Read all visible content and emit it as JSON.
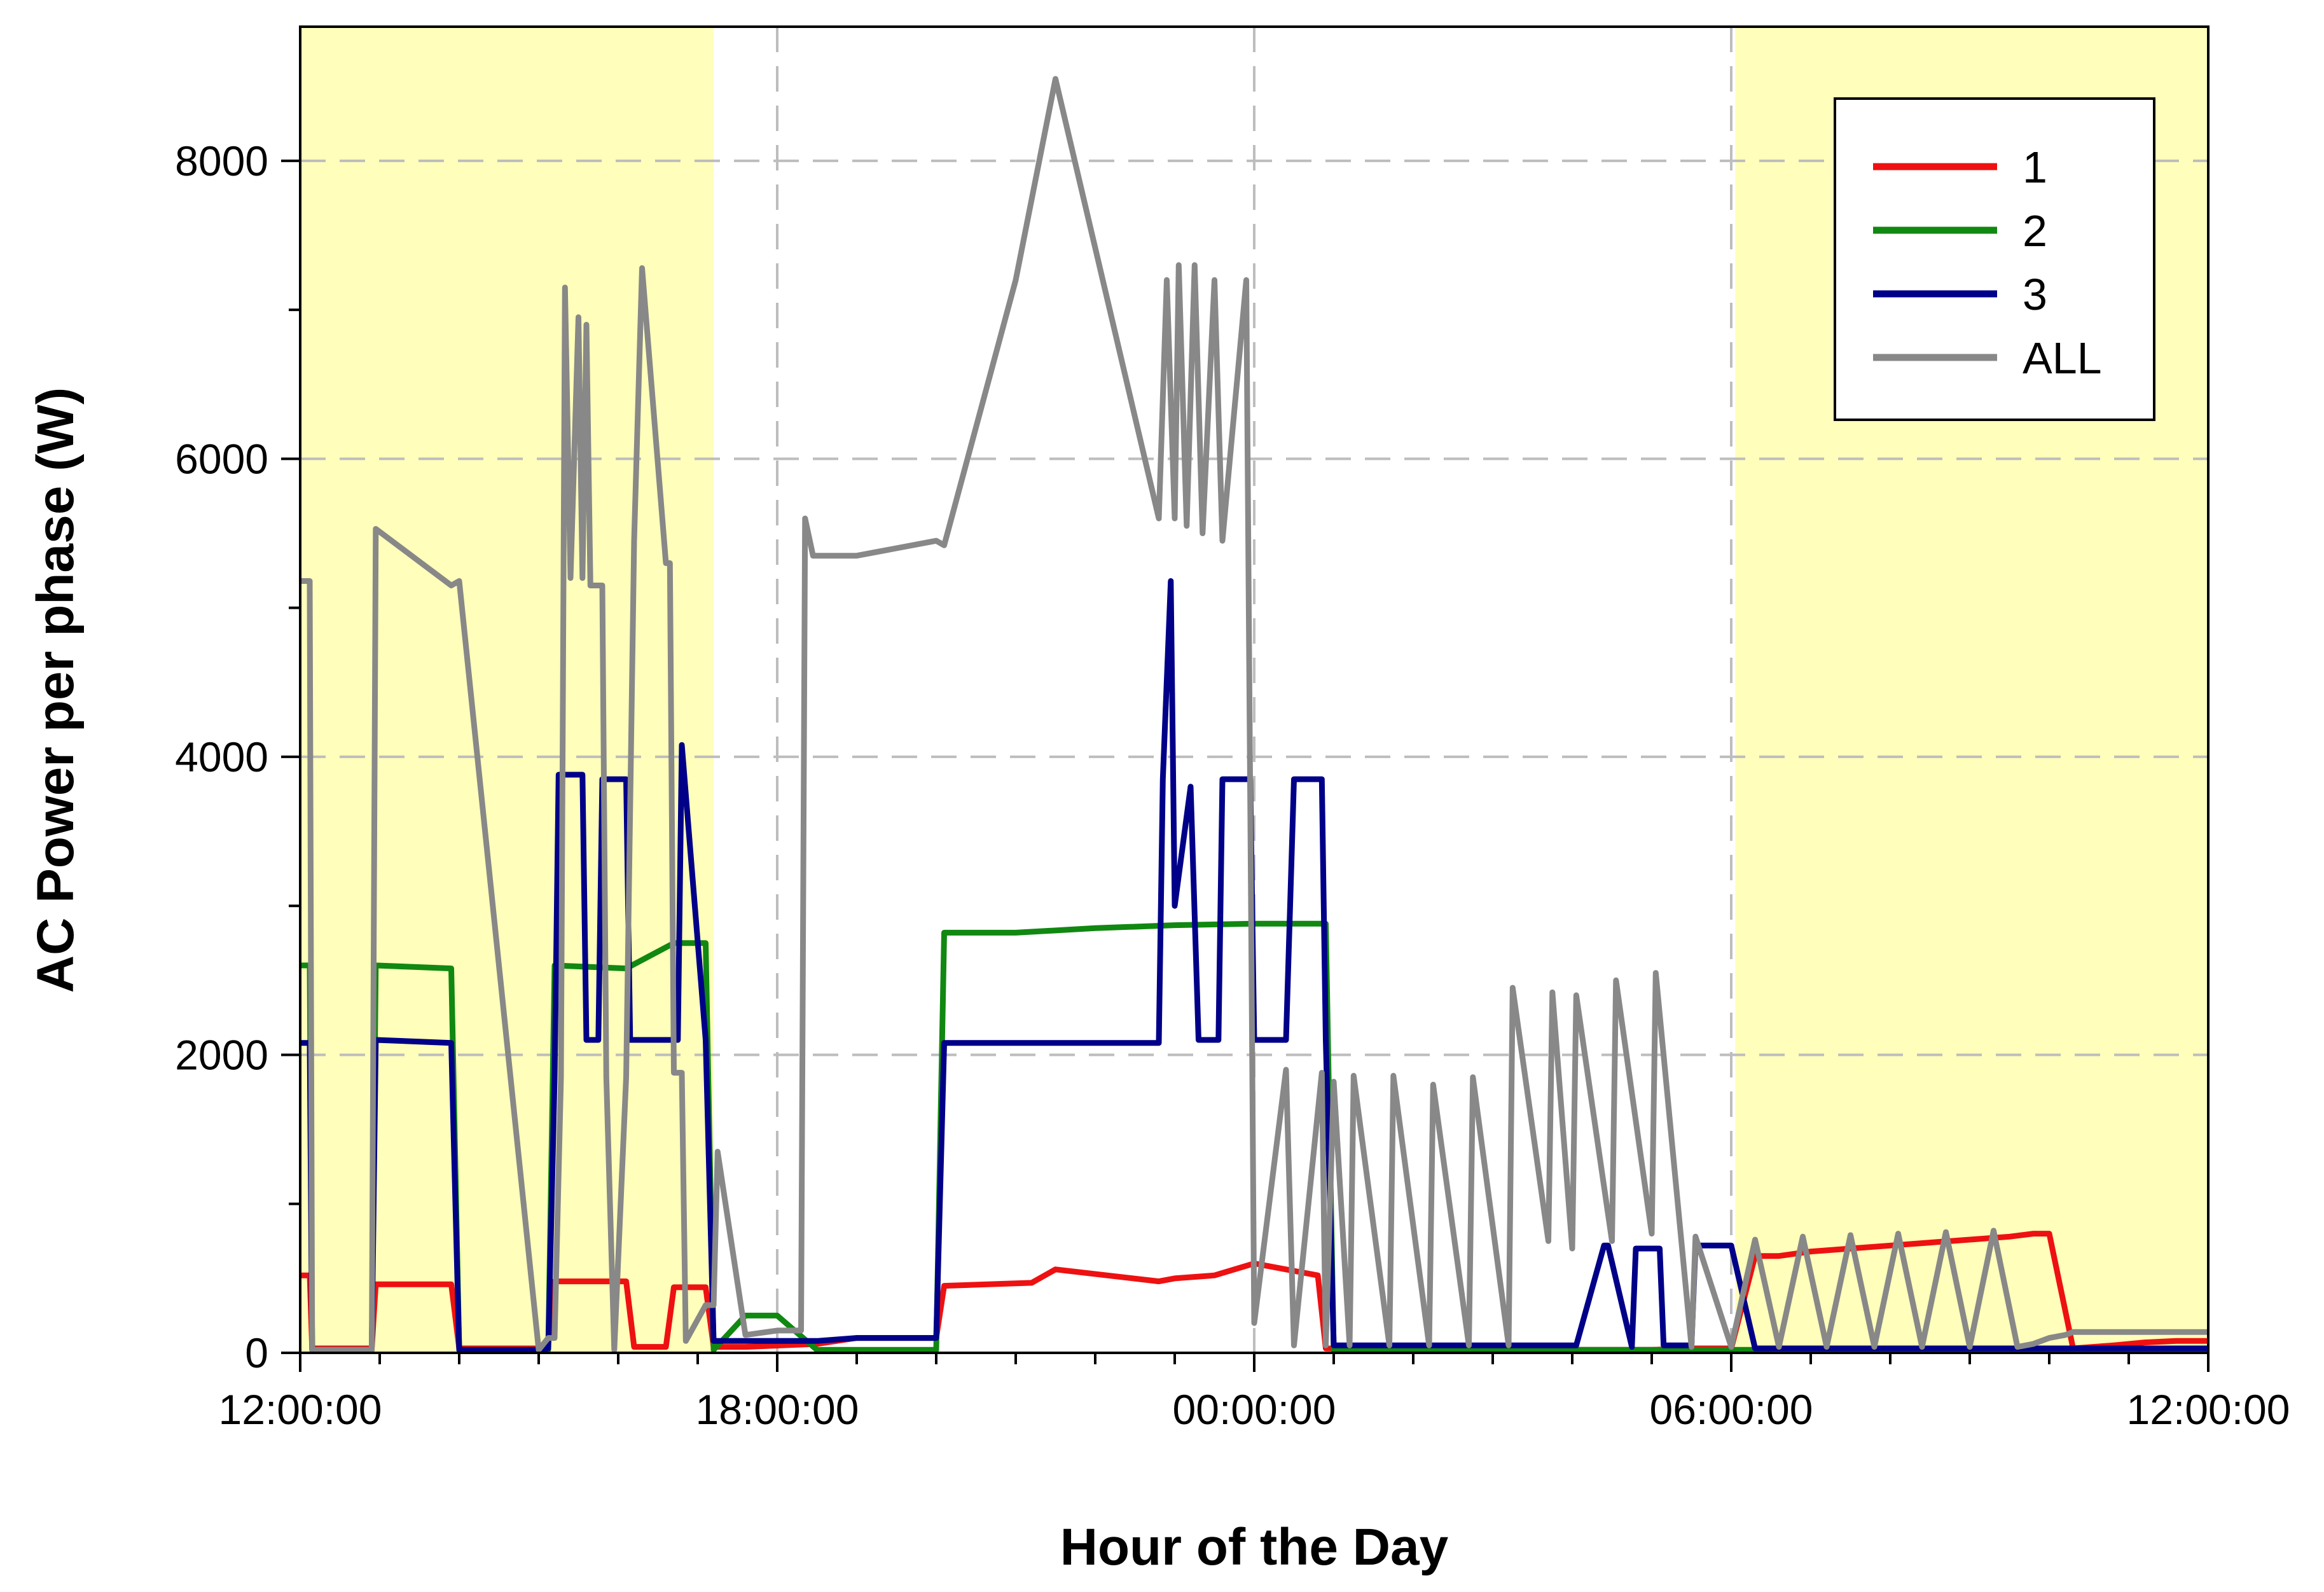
{
  "chart_data": {
    "type": "line",
    "title": "",
    "xlabel": "Hour of the Day",
    "ylabel": "AC Power per phase (W)",
    "xlim": [
      0,
      24
    ],
    "ylim": [
      0,
      8900
    ],
    "x_unit": "hours since 12:00:00",
    "x_ticks": [
      {
        "value": 0,
        "label": "12:00:00"
      },
      {
        "value": 6,
        "label": "18:00:00"
      },
      {
        "value": 12,
        "label": "00:00:00"
      },
      {
        "value": 18,
        "label": "06:00:00"
      },
      {
        "value": 24,
        "label": "12:00:00"
      }
    ],
    "y_ticks": [
      {
        "value": 0,
        "label": "0"
      },
      {
        "value": 2000,
        "label": "2000"
      },
      {
        "value": 4000,
        "label": "4000"
      },
      {
        "value": 6000,
        "label": "6000"
      },
      {
        "value": 8000,
        "label": "8000"
      }
    ],
    "grid": true,
    "legend_position": "top-right",
    "daylight_shading": {
      "color": "#ffffbb",
      "ranges": [
        [
          0,
          5.2
        ],
        [
          18.05,
          24
        ]
      ]
    },
    "series": [
      {
        "name": "1",
        "color": "#ee1111",
        "x": [
          0,
          0.12,
          0.15,
          0.9,
          0.95,
          1.9,
          2.0,
          3.0,
          3.12,
          3.2,
          4.1,
          4.2,
          4.6,
          4.7,
          5.1,
          5.2,
          5.6,
          6.5,
          7.0,
          8.0,
          8.1,
          9.2,
          9.5,
          10.8,
          11.0,
          11.5,
          12.0,
          12.8,
          12.9,
          14.0,
          15.0,
          16.0,
          17.0,
          17.5,
          18.0,
          18.3,
          18.6,
          19.0,
          19.5,
          20.0,
          20.5,
          21.0,
          21.5,
          21.8,
          22.0,
          22.3,
          22.8,
          23.2,
          23.6,
          24.0
        ],
        "y": [
          520,
          520,
          30,
          30,
          460,
          460,
          30,
          30,
          60,
          480,
          480,
          40,
          40,
          440,
          440,
          40,
          40,
          60,
          100,
          100,
          450,
          470,
          560,
          480,
          500,
          520,
          600,
          520,
          30,
          20,
          20,
          20,
          20,
          30,
          30,
          650,
          650,
          680,
          700,
          720,
          740,
          760,
          780,
          800,
          800,
          30,
          50,
          70,
          80,
          80
        ]
      },
      {
        "name": "2",
        "color": "#118811",
        "x": [
          0,
          0.12,
          0.15,
          0.9,
          0.95,
          1.9,
          2.0,
          3.0,
          3.12,
          3.2,
          4.1,
          4.7,
          5.1,
          5.2,
          5.6,
          6.0,
          6.5,
          7.0,
          8.0,
          8.1,
          9.0,
          10.0,
          11.0,
          12.0,
          12.9,
          13.0,
          18.0,
          20.0,
          24.0
        ],
        "y": [
          2600,
          2600,
          20,
          20,
          2600,
          2580,
          20,
          20,
          20,
          2600,
          2580,
          2750,
          2750,
          20,
          250,
          250,
          20,
          20,
          20,
          2820,
          2820,
          2850,
          2870,
          2880,
          2880,
          20,
          20,
          20,
          20
        ]
      },
      {
        "name": "3",
        "color": "#000088",
        "x": [
          0,
          0.12,
          0.15,
          0.9,
          0.95,
          1.9,
          2.0,
          3.0,
          3.12,
          3.2,
          3.25,
          3.55,
          3.6,
          3.75,
          3.8,
          4.1,
          4.15,
          4.75,
          4.8,
          5.1,
          5.2,
          6.5,
          7.0,
          8.0,
          8.1,
          9.5,
          10.8,
          10.85,
          10.95,
          11.0,
          11.2,
          11.3,
          11.55,
          11.6,
          11.95,
          12.0,
          12.4,
          12.5,
          12.85,
          12.9,
          13.0,
          16.0,
          16.05,
          16.4,
          16.45,
          16.75,
          16.8,
          17.1,
          17.15,
          17.5,
          17.55,
          18.0,
          18.3,
          24.0
        ],
        "y": [
          2080,
          2080,
          20,
          20,
          2100,
          2080,
          20,
          20,
          30,
          1850,
          3880,
          3880,
          2100,
          2100,
          3850,
          3850,
          2100,
          2100,
          4080,
          2100,
          80,
          80,
          100,
          100,
          2080,
          2080,
          2080,
          3850,
          5180,
          3000,
          3800,
          2100,
          2100,
          3850,
          3850,
          2100,
          2100,
          3850,
          3850,
          2100,
          50,
          50,
          50,
          720,
          720,
          40,
          700,
          700,
          50,
          50,
          720,
          720,
          30,
          30
        ]
      },
      {
        "name": "ALL",
        "color": "#888888",
        "x": [
          0,
          0.12,
          0.15,
          0.9,
          0.95,
          1.9,
          2.0,
          3.0,
          3.12,
          3.2,
          3.28,
          3.33,
          3.4,
          3.5,
          3.55,
          3.6,
          3.65,
          3.8,
          3.85,
          3.95,
          4.1,
          4.2,
          4.3,
          4.6,
          4.65,
          4.7,
          4.8,
          4.85,
          5.1,
          5.2,
          5.25,
          5.6,
          6.0,
          6.3,
          6.35,
          6.45,
          7.0,
          8.0,
          8.1,
          9.0,
          9.5,
          10.8,
          10.9,
          11.0,
          11.05,
          11.15,
          11.25,
          11.35,
          11.5,
          11.6,
          11.9,
          12.0,
          12.4,
          12.5,
          12.85,
          12.9,
          13.0,
          13.2,
          13.25,
          13.7,
          13.75,
          14.2,
          14.25,
          14.7,
          14.75,
          15.2,
          15.25,
          15.7,
          15.75,
          16.0,
          16.05,
          16.5,
          16.55,
          17.0,
          17.05,
          17.5,
          17.55,
          18.0,
          18.3,
          18.6,
          18.9,
          19.2,
          19.5,
          19.8,
          20.1,
          20.4,
          20.7,
          21.0,
          21.3,
          21.6,
          21.8,
          22.0,
          22.2,
          22.3,
          22.8,
          23.2,
          23.6,
          24.0
        ],
        "y": [
          5180,
          5180,
          20,
          20,
          5530,
          5150,
          5180,
          20,
          100,
          100,
          1850,
          7150,
          5200,
          6950,
          5200,
          6900,
          5150,
          5150,
          1850,
          20,
          1850,
          5450,
          7280,
          5300,
          5300,
          1880,
          1880,
          80,
          320,
          320,
          1350,
          120,
          150,
          150,
          5600,
          5350,
          5350,
          5450,
          5420,
          7200,
          8550,
          5600,
          7200,
          5600,
          7300,
          5550,
          7300,
          5500,
          7200,
          5450,
          7200,
          200,
          1900,
          50,
          1880,
          50,
          1820,
          50,
          1860,
          50,
          1860,
          50,
          1800,
          50,
          1850,
          50,
          2450,
          750,
          2420,
          700,
          2400,
          750,
          2500,
          800,
          2550,
          40,
          780,
          40,
          760,
          40,
          780,
          40,
          790,
          40,
          800,
          40,
          810,
          40,
          820,
          40,
          60,
          100,
          120,
          140,
          140,
          140,
          140,
          140
        ]
      }
    ]
  }
}
